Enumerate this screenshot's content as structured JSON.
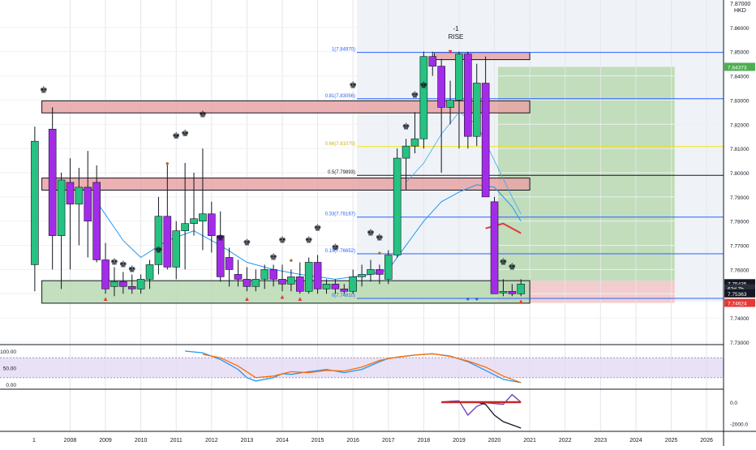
{
  "chart_data": {
    "type": "candlestick",
    "currency": "HKD",
    "top_price_label": "7.87000",
    "x_ticks": [
      "2008",
      "2009",
      "2010",
      "2011",
      "2012",
      "2013",
      "2014",
      "2015",
      "2016",
      "2017",
      "2018",
      "2019",
      "2020",
      "2021",
      "2022",
      "2023",
      "2024",
      "2025",
      "2026"
    ],
    "x_start_label": "1",
    "y_ticks": [
      "7.86000",
      "7.85000",
      "7.84000",
      "7.83000",
      "7.82000",
      "7.81000",
      "7.80000",
      "7.79000",
      "7.78000",
      "7.77000",
      "7.76000",
      "7.75000",
      "7.74000",
      "7.73000"
    ],
    "price_tags": [
      {
        "label": "7.84373",
        "price": 7.84373,
        "color": "#4caf50"
      },
      {
        "label": "7.75435",
        "price": 7.75435,
        "color": "#131722"
      },
      {
        "label": "62d 7h",
        "price": 7.75225,
        "color": "#2a2e39"
      },
      {
        "label": "7.75363",
        "price": 7.75015,
        "color": "#131722"
      },
      {
        "label": "7.74624",
        "price": 7.74624,
        "color": "#e53935"
      }
    ],
    "fib_levels": [
      {
        "label": "1(7.84970)",
        "price": 7.8497,
        "color": "#2962ff"
      },
      {
        "label": "0.81(7.83056)",
        "price": 7.83056,
        "color": "#2962ff"
      },
      {
        "label": "0.66(7.81079)",
        "price": 7.81079,
        "color": "#f2e30f"
      },
      {
        "label": "0.5(7.79893)",
        "price": 7.79893,
        "color": "#131722"
      },
      {
        "label": "0.33(7.78167)",
        "price": 7.78167,
        "color": "#2962ff"
      },
      {
        "label": "0.15(7.76652)",
        "price": 7.76652,
        "color": "#2962ff"
      },
      {
        "label": "0(7.74810)",
        "price": 7.7481,
        "color": "#2962ff"
      }
    ],
    "zones": [
      {
        "type": "supply",
        "x0": 2007.2,
        "x1": 2021.0,
        "top": 7.8297,
        "bottom": 7.8247
      },
      {
        "type": "supply",
        "x0": 2007.2,
        "x1": 2021.0,
        "top": 7.7978,
        "bottom": 7.7928
      },
      {
        "type": "supply",
        "x0": 2018.3,
        "x1": 2021.0,
        "top": 7.8497,
        "bottom": 7.8467
      },
      {
        "type": "demand",
        "x0": 2007.2,
        "x1": 2021.0,
        "top": 7.7554,
        "bottom": 7.7461
      }
    ],
    "position": {
      "entry": 7.7554,
      "target": 7.8437,
      "stop": 7.7462,
      "x0": 2020.1,
      "x1": 2025.1
    },
    "annotation": {
      "line1": "-1",
      "line2": "RISE"
    },
    "candles": [
      {
        "t": 2007.0,
        "o": 7.762,
        "h": 7.819,
        "l": 7.751,
        "c": 7.813
      },
      {
        "t": 2007.5,
        "o": 7.818,
        "h": 7.827,
        "l": 7.76,
        "c": 7.774
      },
      {
        "t": 2007.75,
        "o": 7.774,
        "h": 7.8,
        "l": 7.752,
        "c": 7.797
      },
      {
        "t": 2008.0,
        "o": 7.796,
        "h": 7.806,
        "l": 7.76,
        "c": 7.787
      },
      {
        "t": 2008.25,
        "o": 7.787,
        "h": 7.802,
        "l": 7.77,
        "c": 7.794
      },
      {
        "t": 2008.5,
        "o": 7.794,
        "h": 7.809,
        "l": 7.765,
        "c": 7.78
      },
      {
        "t": 2008.75,
        "o": 7.796,
        "h": 7.803,
        "l": 7.763,
        "c": 7.764
      },
      {
        "t": 2009.0,
        "o": 7.764,
        "h": 7.771,
        "l": 7.75,
        "c": 7.752
      },
      {
        "t": 2009.25,
        "o": 7.753,
        "h": 7.761,
        "l": 7.749,
        "c": 7.755
      },
      {
        "t": 2009.5,
        "o": 7.755,
        "h": 7.759,
        "l": 7.75,
        "c": 7.753
      },
      {
        "t": 2009.75,
        "o": 7.753,
        "h": 7.758,
        "l": 7.75,
        "c": 7.752
      },
      {
        "t": 2010.0,
        "o": 7.752,
        "h": 7.758,
        "l": 7.75,
        "c": 7.756
      },
      {
        "t": 2010.25,
        "o": 7.756,
        "h": 7.764,
        "l": 7.752,
        "c": 7.762
      },
      {
        "t": 2010.5,
        "o": 7.762,
        "h": 7.79,
        "l": 7.758,
        "c": 7.782
      },
      {
        "t": 2010.75,
        "o": 7.782,
        "h": 7.804,
        "l": 7.76,
        "c": 7.761
      },
      {
        "t": 2011.0,
        "o": 7.761,
        "h": 7.78,
        "l": 7.756,
        "c": 7.776
      },
      {
        "t": 2011.25,
        "o": 7.776,
        "h": 7.804,
        "l": 7.76,
        "c": 7.779
      },
      {
        "t": 2011.5,
        "o": 7.779,
        "h": 7.8,
        "l": 7.774,
        "c": 7.781
      },
      {
        "t": 2011.75,
        "o": 7.78,
        "h": 7.81,
        "l": 7.768,
        "c": 7.783
      },
      {
        "t": 2012.0,
        "o": 7.783,
        "h": 7.788,
        "l": 7.767,
        "c": 7.774
      },
      {
        "t": 2012.25,
        "o": 7.774,
        "h": 7.784,
        "l": 7.755,
        "c": 7.757
      },
      {
        "t": 2012.5,
        "o": 7.765,
        "h": 7.769,
        "l": 7.753,
        "c": 7.76
      },
      {
        "t": 2012.75,
        "o": 7.758,
        "h": 7.764,
        "l": 7.753,
        "c": 7.756
      },
      {
        "t": 2013.0,
        "o": 7.756,
        "h": 7.761,
        "l": 7.751,
        "c": 7.753
      },
      {
        "t": 2013.25,
        "o": 7.753,
        "h": 7.76,
        "l": 7.751,
        "c": 7.756
      },
      {
        "t": 2013.5,
        "o": 7.756,
        "h": 7.762,
        "l": 7.752,
        "c": 7.76
      },
      {
        "t": 2013.75,
        "o": 7.76,
        "h": 7.762,
        "l": 7.753,
        "c": 7.756
      },
      {
        "t": 2014.0,
        "o": 7.756,
        "h": 7.762,
        "l": 7.751,
        "c": 7.754
      },
      {
        "t": 2014.25,
        "o": 7.754,
        "h": 7.76,
        "l": 7.751,
        "c": 7.757
      },
      {
        "t": 2014.5,
        "o": 7.757,
        "h": 7.763,
        "l": 7.75,
        "c": 7.751
      },
      {
        "t": 2014.75,
        "o": 7.751,
        "h": 7.765,
        "l": 7.75,
        "c": 7.763
      },
      {
        "t": 2015.0,
        "o": 7.763,
        "h": 7.766,
        "l": 7.75,
        "c": 7.752
      },
      {
        "t": 2015.25,
        "o": 7.752,
        "h": 7.756,
        "l": 7.75,
        "c": 7.754
      },
      {
        "t": 2015.5,
        "o": 7.754,
        "h": 7.756,
        "l": 7.75,
        "c": 7.752
      },
      {
        "t": 2015.75,
        "o": 7.752,
        "h": 7.754,
        "l": 7.75,
        "c": 7.751
      },
      {
        "t": 2016.0,
        "o": 7.751,
        "h": 7.76,
        "l": 7.75,
        "c": 7.757
      },
      {
        "t": 2016.25,
        "o": 7.757,
        "h": 7.762,
        "l": 7.753,
        "c": 7.758
      },
      {
        "t": 2016.5,
        "o": 7.758,
        "h": 7.764,
        "l": 7.755,
        "c": 7.76
      },
      {
        "t": 2016.75,
        "o": 7.76,
        "h": 7.762,
        "l": 7.754,
        "c": 7.758
      },
      {
        "t": 2017.0,
        "o": 7.756,
        "h": 7.768,
        "l": 7.754,
        "c": 7.766
      },
      {
        "t": 2017.25,
        "o": 7.766,
        "h": 7.81,
        "l": 7.765,
        "c": 7.806
      },
      {
        "t": 2017.5,
        "o": 7.806,
        "h": 7.814,
        "l": 7.793,
        "c": 7.811
      },
      {
        "t": 2017.75,
        "o": 7.811,
        "h": 7.825,
        "l": 7.808,
        "c": 7.814
      },
      {
        "t": 2018.0,
        "o": 7.814,
        "h": 7.85,
        "l": 7.81,
        "c": 7.848
      },
      {
        "t": 2018.25,
        "o": 7.848,
        "h": 7.85,
        "l": 7.84,
        "c": 7.844
      },
      {
        "t": 2018.5,
        "o": 7.844,
        "h": 7.847,
        "l": 7.8,
        "c": 7.827
      },
      {
        "t": 2018.75,
        "o": 7.827,
        "h": 7.838,
        "l": 7.82,
        "c": 7.83
      },
      {
        "t": 2019.0,
        "o": 7.83,
        "h": 7.85,
        "l": 7.81,
        "c": 7.849
      },
      {
        "t": 2019.25,
        "o": 7.849,
        "h": 7.85,
        "l": 7.81,
        "c": 7.815
      },
      {
        "t": 2019.5,
        "o": 7.815,
        "h": 7.845,
        "l": 7.811,
        "c": 7.837
      },
      {
        "t": 2019.75,
        "o": 7.837,
        "h": 7.848,
        "l": 7.79,
        "c": 7.79
      },
      {
        "t": 2020.0,
        "o": 7.788,
        "h": 7.79,
        "l": 7.75,
        "c": 7.75
      },
      {
        "t": 2020.25,
        "o": 7.751,
        "h": 7.756,
        "l": 7.749,
        "c": 7.751
      },
      {
        "t": 2020.5,
        "o": 7.751,
        "h": 7.754,
        "l": 7.749,
        "c": 7.75
      },
      {
        "t": 2020.75,
        "o": 7.75,
        "h": 7.756,
        "l": 7.749,
        "c": 7.754
      }
    ],
    "ma_blue": [
      [
        2008.75,
        7.788
      ],
      [
        2009.5,
        7.772
      ],
      [
        2010.0,
        7.765
      ],
      [
        2010.75,
        7.772
      ],
      [
        2011.5,
        7.776
      ],
      [
        2012.25,
        7.77
      ],
      [
        2013.0,
        7.763
      ],
      [
        2013.75,
        7.76
      ],
      [
        2014.5,
        7.758
      ],
      [
        2015.5,
        7.756
      ],
      [
        2016.5,
        7.758
      ],
      [
        2017.0,
        7.76
      ],
      [
        2017.5,
        7.77
      ],
      [
        2018.0,
        7.78
      ],
      [
        2018.5,
        7.788
      ],
      [
        2019.0,
        7.792
      ],
      [
        2019.5,
        7.795
      ],
      [
        2020.0,
        7.794
      ],
      [
        2020.5,
        7.786
      ],
      [
        2020.75,
        7.78
      ]
    ],
    "ma_light": [
      [
        2017.5,
        7.796
      ],
      [
        2018.0,
        7.804
      ],
      [
        2018.5,
        7.816
      ],
      [
        2019.0,
        7.825
      ],
      [
        2019.5,
        7.82
      ],
      [
        2020.0,
        7.805
      ],
      [
        2020.5,
        7.79
      ],
      [
        2020.75,
        7.783
      ]
    ],
    "ma_red": [
      [
        2019.75,
        7.777
      ],
      [
        2020.25,
        7.779
      ],
      [
        2020.75,
        7.775
      ]
    ],
    "icons": [
      {
        "kind": "king",
        "t": 2007.25,
        "p": 7.833
      },
      {
        "kind": "king",
        "t": 2009.25,
        "p": 7.762
      },
      {
        "kind": "king",
        "t": 2009.5,
        "p": 7.761
      },
      {
        "kind": "king",
        "t": 2009.75,
        "p": 7.759
      },
      {
        "kind": "king",
        "t": 2010.5,
        "p": 7.767
      },
      {
        "kind": "king",
        "t": 2011.0,
        "p": 7.814
      },
      {
        "kind": "king",
        "t": 2011.25,
        "p": 7.815
      },
      {
        "kind": "king",
        "t": 2011.75,
        "p": 7.823
      },
      {
        "kind": "king",
        "t": 2012.25,
        "p": 7.772
      },
      {
        "kind": "king",
        "t": 2013.0,
        "p": 7.77
      },
      {
        "kind": "king",
        "t": 2013.75,
        "p": 7.764
      },
      {
        "kind": "king",
        "t": 2014.0,
        "p": 7.771
      },
      {
        "kind": "king",
        "t": 2014.75,
        "p": 7.771
      },
      {
        "kind": "king",
        "t": 2015.0,
        "p": 7.776
      },
      {
        "kind": "king",
        "t": 2015.5,
        "p": 7.768
      },
      {
        "kind": "king",
        "t": 2016.0,
        "p": 7.835
      },
      {
        "kind": "king",
        "t": 2016.5,
        "p": 7.774
      },
      {
        "kind": "king",
        "t": 2016.75,
        "p": 7.772
      },
      {
        "kind": "king",
        "t": 2017.5,
        "p": 7.818
      },
      {
        "kind": "king",
        "t": 2017.75,
        "p": 7.831
      },
      {
        "kind": "king",
        "t": 2018.0,
        "p": 7.835
      },
      {
        "kind": "king",
        "t": 2020.25,
        "p": 7.762
      },
      {
        "kind": "king",
        "t": 2020.5,
        "p": 7.76
      },
      {
        "kind": "bear",
        "t": 2010.75,
        "p": 7.803
      },
      {
        "kind": "bear",
        "t": 2014.25,
        "p": 7.763
      },
      {
        "kind": "bear",
        "t": 2016.75,
        "p": 7.766
      },
      {
        "kind": "rocket",
        "t": 2009.0,
        "p": 7.747
      },
      {
        "kind": "rocket",
        "t": 2013.0,
        "p": 7.747
      },
      {
        "kind": "rocket",
        "t": 2014.0,
        "p": 7.748
      },
      {
        "kind": "rocket",
        "t": 2014.5,
        "p": 7.747
      },
      {
        "kind": "rocket",
        "t": 2020.75,
        "p": 7.746
      },
      {
        "kind": "flag",
        "t": 2018.75,
        "p": 7.849
      },
      {
        "kind": "dot",
        "t": 2019.25,
        "p": 7.747
      },
      {
        "kind": "dot",
        "t": 2019.5,
        "p": 7.747
      }
    ],
    "oscillator": {
      "y_ticks": [
        "100.00",
        "50.00",
        "0.00"
      ],
      "range": [
        0,
        100
      ],
      "band": [
        20,
        80
      ],
      "blue": [
        [
          2011.25,
          100
        ],
        [
          2011.75,
          95
        ],
        [
          2012.25,
          75
        ],
        [
          2012.75,
          45
        ],
        [
          2013.0,
          20
        ],
        [
          2013.25,
          10
        ],
        [
          2013.75,
          20
        ],
        [
          2014.0,
          32
        ],
        [
          2014.25,
          30
        ],
        [
          2014.75,
          38
        ],
        [
          2015.25,
          45
        ],
        [
          2015.75,
          35
        ],
        [
          2016.25,
          45
        ],
        [
          2016.75,
          68
        ],
        [
          2017.0,
          78
        ],
        [
          2017.75,
          88
        ],
        [
          2018.25,
          92
        ],
        [
          2018.75,
          85
        ],
        [
          2019.25,
          68
        ],
        [
          2019.75,
          42
        ],
        [
          2020.25,
          15
        ],
        [
          2020.75,
          5
        ]
      ],
      "orange": [
        [
          2011.75,
          90
        ],
        [
          2012.25,
          80
        ],
        [
          2012.75,
          55
        ],
        [
          2013.25,
          20
        ],
        [
          2013.75,
          25
        ],
        [
          2014.25,
          38
        ],
        [
          2014.75,
          35
        ],
        [
          2015.25,
          42
        ],
        [
          2015.75,
          40
        ],
        [
          2016.25,
          52
        ],
        [
          2016.75,
          72
        ],
        [
          2017.25,
          82
        ],
        [
          2017.75,
          88
        ],
        [
          2018.25,
          92
        ],
        [
          2018.75,
          84
        ],
        [
          2019.25,
          70
        ],
        [
          2019.75,
          52
        ],
        [
          2020.25,
          25
        ],
        [
          2020.75,
          5
        ]
      ]
    },
    "macd": {
      "y_ticks": [
        "0.0",
        "-2000.0"
      ],
      "range": [
        -2400,
        900
      ],
      "red": [
        [
          2018.5,
          0
        ],
        [
          2020.75,
          0
        ]
      ],
      "purple": [
        [
          2018.5,
          0
        ],
        [
          2018.75,
          80
        ],
        [
          2019.0,
          120
        ],
        [
          2019.25,
          -1200
        ],
        [
          2019.5,
          -400
        ],
        [
          2019.75,
          -50
        ],
        [
          2020.25,
          -200
        ],
        [
          2020.5,
          700
        ],
        [
          2020.75,
          0
        ]
      ],
      "black": [
        [
          2019.5,
          0
        ],
        [
          2019.75,
          -200
        ],
        [
          2020.0,
          -1200
        ],
        [
          2020.25,
          -1800
        ],
        [
          2020.5,
          -2100
        ],
        [
          2020.75,
          -2400
        ]
      ]
    }
  }
}
